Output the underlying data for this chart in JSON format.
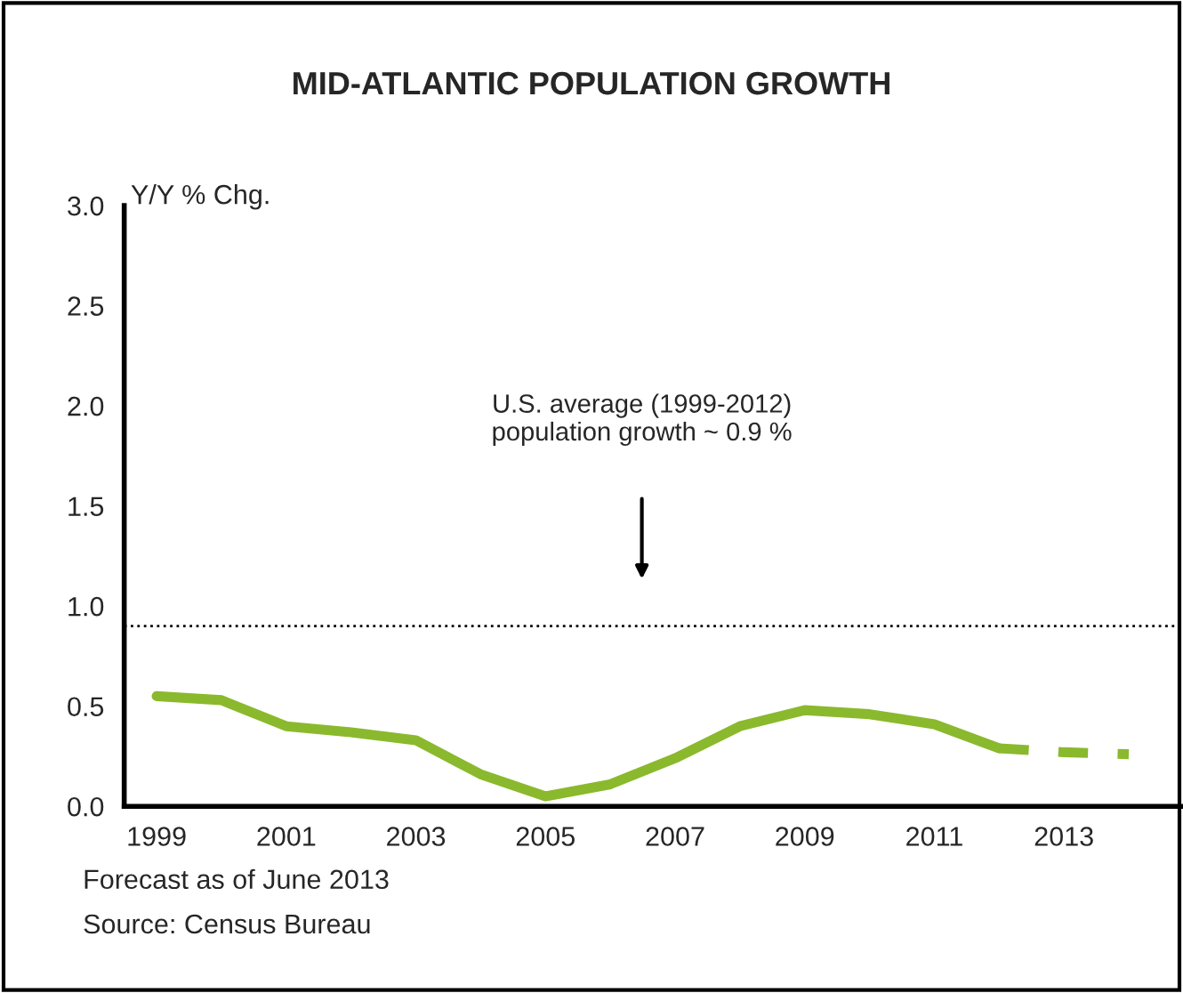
{
  "chart_data": {
    "type": "line",
    "title": "MID-ATLANTIC POPULATION GROWTH",
    "ylabel": "Y/Y % Chg.",
    "series": [
      {
        "color": "#8ab92d",
        "line_style": "solid",
        "x": [
          1999,
          2000,
          2001,
          2002,
          2003,
          2004,
          2005,
          2006,
          2007,
          2008,
          2009,
          2010,
          2011,
          2012
        ],
        "values": [
          0.55,
          0.53,
          0.4,
          0.37,
          0.33,
          0.16,
          0.05,
          0.11,
          0.24,
          0.4,
          0.48,
          0.46,
          0.41,
          0.29
        ]
      },
      {
        "color": "#8ab92d",
        "line_style": "dashed",
        "x": [
          2012,
          2013,
          2014
        ],
        "values": [
          0.29,
          0.27,
          0.26
        ]
      }
    ],
    "xlim": [
      1998.5,
      2014.8
    ],
    "xticks": [
      1999,
      2001,
      2003,
      2005,
      2007,
      2009,
      2011,
      2013
    ],
    "ylim": [
      0,
      3.0
    ],
    "yticks": [
      {
        "value": 0,
        "label": "0.0"
      },
      {
        "value": 0.5,
        "label": "0.5"
      },
      {
        "value": 1.0,
        "label": "1.0"
      },
      {
        "value": 1.5,
        "label": "1.5"
      },
      {
        "value": 2.0,
        "label": "2.0"
      },
      {
        "value": 2.5,
        "label": "2.5"
      },
      {
        "value": 3.0,
        "label": "3.0"
      }
    ],
    "ref_lines": [
      {
        "axis": "y",
        "value": 0.9,
        "line_style": "dotted",
        "color": "#000000"
      }
    ],
    "annotations": [
      "U.S. average (1999-2012)\npopulation growth ~ 0.9 %",
      "Forecast as of June 2013",
      "Source: Census Bureau"
    ],
    "grid": false,
    "legend": false,
    "marker": "none"
  }
}
